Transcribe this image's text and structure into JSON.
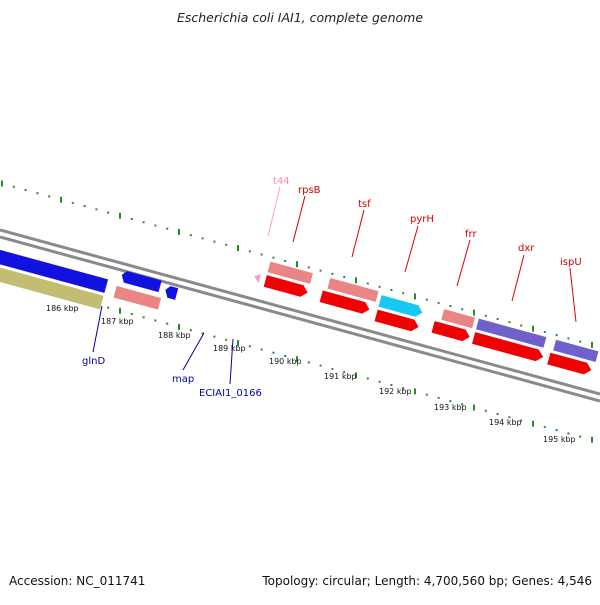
{
  "title": "Escherichia coli IAI1, complete genome",
  "footer": {
    "accession": "Accession: NC_011741",
    "summary": "Topology: circular; Length: 4,700,560 bp; Genes: 4,546"
  },
  "colors": {
    "backbone": "#8a8a8a",
    "tick": "#2a8a2a",
    "blue": "#1212e0",
    "steelblue": "#4a82b4",
    "olive": "#c2bd72",
    "salmon": "#e98585",
    "red": "#f00000",
    "cyan": "#18c8f0",
    "purple": "#7060cc",
    "pink": "#ff99cc",
    "label_red": "#d40000",
    "label_blue": "#0000aa",
    "label_pink": "#ff88bb"
  },
  "scale_labels": [
    "186 kbp",
    "187 kbp",
    "188 kbp",
    "189 kbp",
    "190 kbp",
    "191 kbp",
    "192 kbp",
    "193 kbp",
    "194 kbp",
    "195 kbp"
  ],
  "gene_labels_top": [
    {
      "name": "t44",
      "color": "label_pink"
    },
    {
      "name": "rpsB",
      "color": "label_red"
    },
    {
      "name": "tsf",
      "color": "label_red"
    },
    {
      "name": "pyrH",
      "color": "label_red"
    },
    {
      "name": "frr",
      "color": "label_red"
    },
    {
      "name": "dxr",
      "color": "label_red"
    },
    {
      "name": "ispU",
      "color": "label_red"
    }
  ],
  "gene_labels_bottom": [
    {
      "name": "glnD",
      "color": "label_blue"
    },
    {
      "name": "map",
      "color": "label_blue"
    },
    {
      "name": "ECIAI1_0166",
      "color": "label_blue"
    }
  ]
}
